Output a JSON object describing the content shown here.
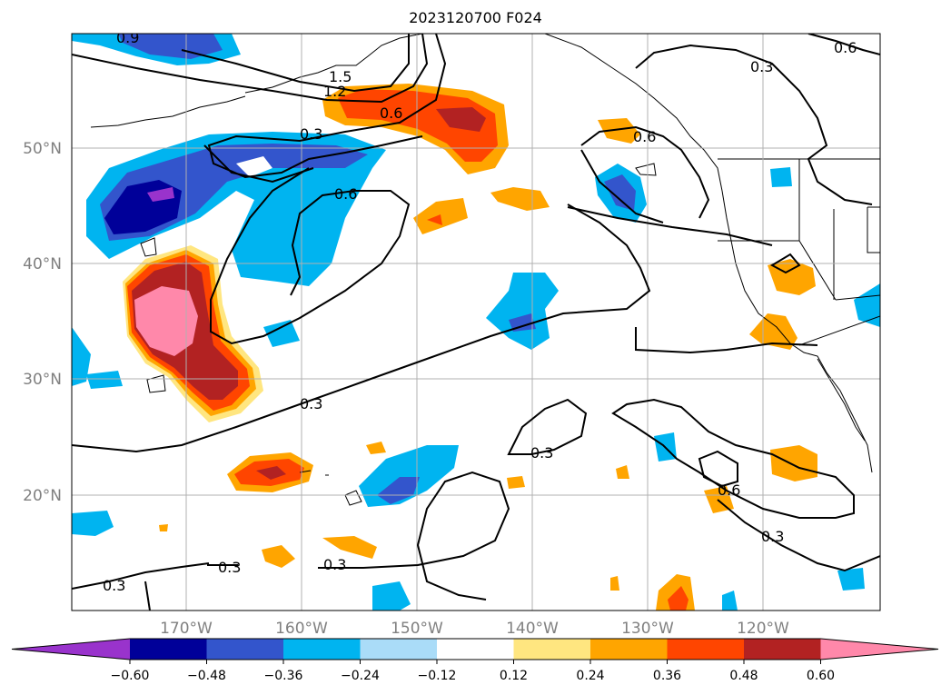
{
  "title": "2023120700 F024",
  "lat_labels": [
    "50°N",
    "40°N",
    "30°N",
    "20°N"
  ],
  "lon_labels": [
    "170°W",
    "160°W",
    "150°W",
    "140°W",
    "130°W",
    "120°W"
  ],
  "colorbar": {
    "ticks": [
      "−0.60",
      "−0.48",
      "−0.36",
      "−0.24",
      "−0.12",
      "0.12",
      "0.24",
      "0.36",
      "0.48",
      "0.60"
    ],
    "colors": [
      "#9933cc",
      "#000099",
      "#3355cc",
      "#00b4f0",
      "#aadcf8",
      "#ffffff",
      "#ffe680",
      "#ffa500",
      "#ff4500",
      "#b22222",
      "#ff88aa"
    ]
  },
  "contour_labels": [
    "0.9",
    "1.5",
    "1.2",
    "0.6",
    "0.3",
    "0.6",
    "0.6",
    "0.3",
    "0.6",
    "0.3",
    "0.3",
    "0.6",
    "0.3",
    "0.3",
    "0.3",
    "0.3"
  ]
}
